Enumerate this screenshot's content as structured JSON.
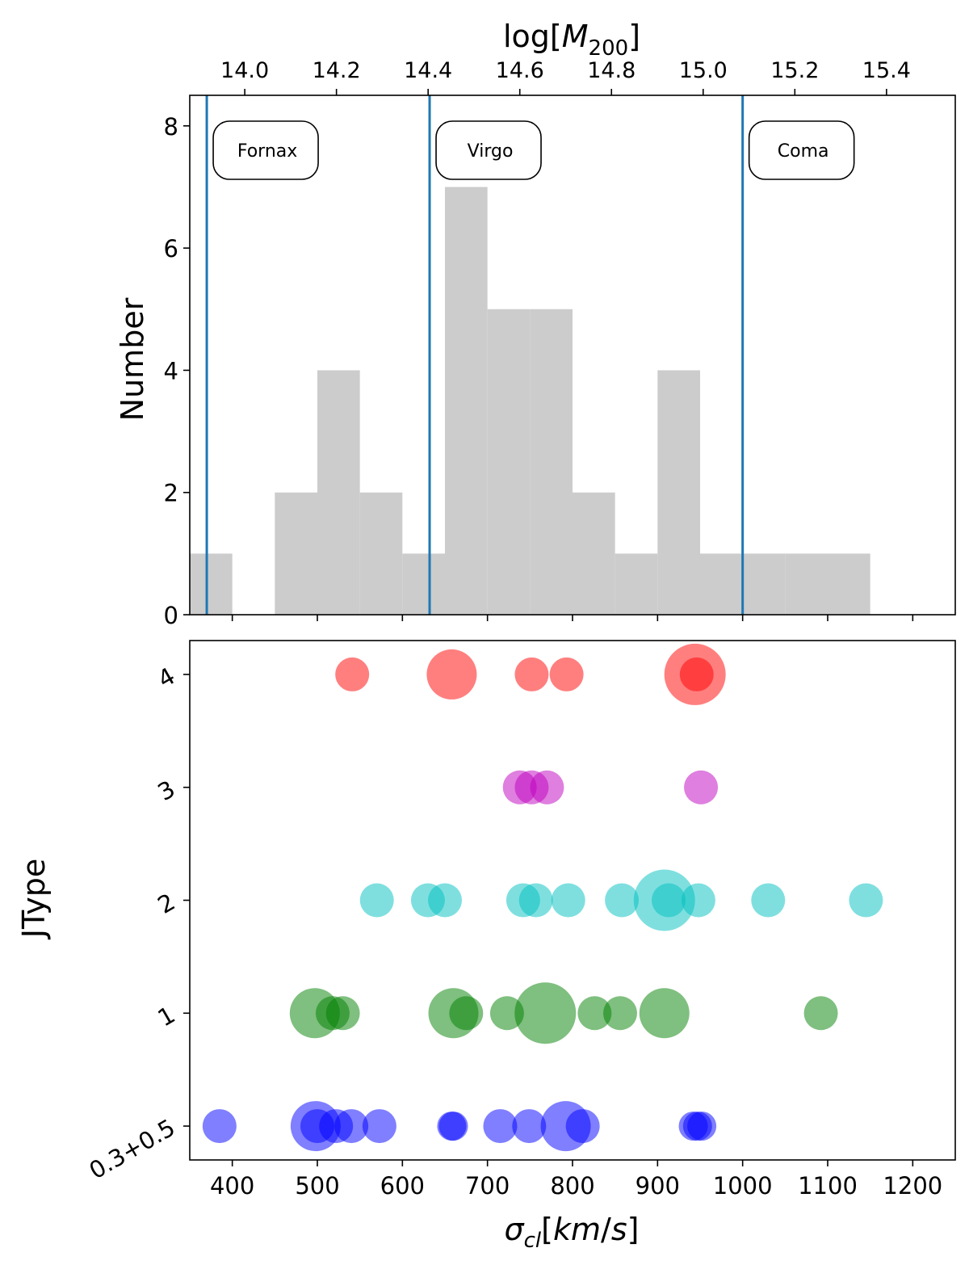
{
  "chart_data": [
    {
      "type": "bar",
      "panel": "top",
      "title": "",
      "xlabel": "σ_cl[km/s]",
      "ylabel": "Number",
      "top_xlabel": "log[M200]",
      "xlim": [
        350,
        1250
      ],
      "ylim": [
        0,
        8.5
      ],
      "yticks": [
        "0",
        "2",
        "4",
        "6",
        "8"
      ],
      "top_xlim": [
        13.88,
        15.55
      ],
      "top_xticks": [
        "14.0",
        "14.2",
        "14.4",
        "14.6",
        "14.8",
        "15.0",
        "15.2",
        "15.4"
      ],
      "bars": [
        {
          "x0": 350,
          "x1": 400,
          "count": 1
        },
        {
          "x0": 400,
          "x1": 450,
          "count": 0
        },
        {
          "x0": 450,
          "x1": 500,
          "count": 2
        },
        {
          "x0": 500,
          "x1": 550,
          "count": 4
        },
        {
          "x0": 550,
          "x1": 600,
          "count": 2
        },
        {
          "x0": 600,
          "x1": 650,
          "count": 1
        },
        {
          "x0": 650,
          "x1": 700,
          "count": 7
        },
        {
          "x0": 700,
          "x1": 750,
          "count": 5
        },
        {
          "x0": 750,
          "x1": 800,
          "count": 5
        },
        {
          "x0": 800,
          "x1": 850,
          "count": 2
        },
        {
          "x0": 850,
          "x1": 900,
          "count": 1
        },
        {
          "x0": 900,
          "x1": 950,
          "count": 4
        },
        {
          "x0": 950,
          "x1": 1000,
          "count": 1
        },
        {
          "x0": 1000,
          "x1": 1050,
          "count": 1
        },
        {
          "x0": 1050,
          "x1": 1100,
          "count": 1
        },
        {
          "x0": 1100,
          "x1": 1150,
          "count": 1
        }
      ],
      "bar_color": "#cccccc",
      "reference_lines": [
        {
          "name": "Fornax",
          "x": 370
        },
        {
          "name": "Virgo",
          "x": 632
        },
        {
          "name": "Coma",
          "x": 1000
        }
      ],
      "line_color": "#1f77b4"
    },
    {
      "type": "scatter",
      "panel": "bottom",
      "xlabel": "σ_cl[km/s]",
      "ylabel": "JType",
      "xlim": [
        350,
        1250
      ],
      "xticks": [
        "400",
        "500",
        "600",
        "700",
        "800",
        "900",
        "1000",
        "1100",
        "1200"
      ],
      "ylim": [
        -0.3,
        4.3
      ],
      "ytick_labels": [
        "0.3+0.5",
        "1",
        "2",
        "3",
        "4"
      ],
      "series": [
        {
          "name": "0.3+0.5",
          "y": 0,
          "color": "#0000ff",
          "points": [
            {
              "x": 385,
              "size": 2
            },
            {
              "x": 498,
              "size": 3
            },
            {
              "x": 500,
              "size": 2
            },
            {
              "x": 522,
              "size": 2
            },
            {
              "x": 540,
              "size": 2
            },
            {
              "x": 573,
              "size": 2
            },
            {
              "x": 658,
              "size": 1
            },
            {
              "x": 660,
              "size": 1
            },
            {
              "x": 715,
              "size": 2
            },
            {
              "x": 749,
              "size": 2
            },
            {
              "x": 792,
              "size": 3
            },
            {
              "x": 812,
              "size": 2
            },
            {
              "x": 942,
              "size": 1
            },
            {
              "x": 947,
              "size": 1
            },
            {
              "x": 952,
              "size": 1
            }
          ]
        },
        {
          "name": "1",
          "y": 1,
          "color": "#008000",
          "points": [
            {
              "x": 497,
              "size": 3
            },
            {
              "x": 518,
              "size": 2
            },
            {
              "x": 530,
              "size": 2
            },
            {
              "x": 660,
              "size": 3
            },
            {
              "x": 675,
              "size": 2
            },
            {
              "x": 723,
              "size": 2
            },
            {
              "x": 768,
              "size": 4
            },
            {
              "x": 826,
              "size": 2
            },
            {
              "x": 856,
              "size": 2
            },
            {
              "x": 908,
              "size": 3
            },
            {
              "x": 1092,
              "size": 2
            }
          ]
        },
        {
          "name": "2",
          "y": 2,
          "color": "#00bfbf",
          "points": [
            {
              "x": 570,
              "size": 2
            },
            {
              "x": 630,
              "size": 2
            },
            {
              "x": 650,
              "size": 2
            },
            {
              "x": 742,
              "size": 2
            },
            {
              "x": 757,
              "size": 2
            },
            {
              "x": 795,
              "size": 2
            },
            {
              "x": 858,
              "size": 2
            },
            {
              "x": 908,
              "size": 4
            },
            {
              "x": 913,
              "size": 2
            },
            {
              "x": 948,
              "size": 2
            },
            {
              "x": 1030,
              "size": 2
            },
            {
              "x": 1145,
              "size": 2
            }
          ]
        },
        {
          "name": "3",
          "y": 3,
          "color": "#bf00bf",
          "points": [
            {
              "x": 738,
              "size": 2
            },
            {
              "x": 752,
              "size": 2
            },
            {
              "x": 770,
              "size": 2
            },
            {
              "x": 951,
              "size": 2
            }
          ]
        },
        {
          "name": "4",
          "y": 4,
          "color": "#ff0000",
          "points": [
            {
              "x": 541,
              "size": 2
            },
            {
              "x": 658,
              "size": 3
            },
            {
              "x": 752,
              "size": 2
            },
            {
              "x": 793,
              "size": 2
            },
            {
              "x": 944,
              "size": 4
            },
            {
              "x": 946,
              "size": 2
            }
          ]
        }
      ]
    }
  ]
}
